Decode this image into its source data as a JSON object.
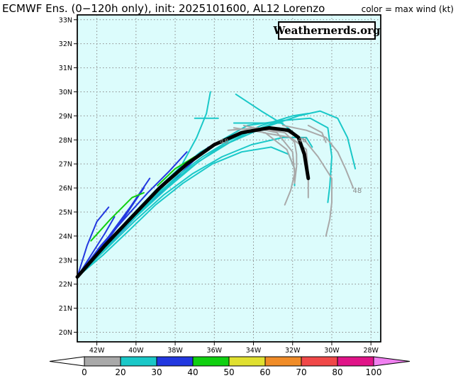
{
  "header": {
    "title": "ECMWF Ens. (0−120h only), init: 2025101600, AL12 Lorenzo",
    "color_label": "color = max wind (kt)"
  },
  "watermark": "Weathernerds.org",
  "map": {
    "lon_range": [
      -43,
      -27.5
    ],
    "lat_range": [
      19.6,
      33.2
    ],
    "lat_ticks": [
      "20N",
      "21N",
      "22N",
      "23N",
      "24N",
      "25N",
      "26N",
      "27N",
      "28N",
      "29N",
      "30N",
      "31N",
      "32N",
      "33N"
    ],
    "lon_ticks": [
      "42W",
      "40W",
      "38W",
      "36W",
      "34W",
      "32W",
      "30W",
      "28W"
    ],
    "grid": true,
    "background_color": "#dcfcfc"
  },
  "colorbar": {
    "ticks": [
      "0",
      "20",
      "30",
      "40",
      "50",
      "60",
      "70",
      "80",
      "100"
    ],
    "colors": [
      "#ffffff",
      "#a9a9a9",
      "#1ac8c8",
      "#2238e0",
      "#10d010",
      "#e0e030",
      "#f08c28",
      "#f04848",
      "#e01488",
      "#f080f0"
    ]
  },
  "annotations": [
    {
      "text": "48",
      "lon": -31.5,
      "lat": 27.9
    },
    {
      "text": "48",
      "lon": -28.7,
      "lat": 25.8
    },
    {
      "text": "48",
      "lon": -35.5,
      "lat": 27.85
    }
  ],
  "tracks": [
    {
      "color": "#2238e0",
      "points": [
        [
          -43,
          22.3
        ],
        [
          -42.3,
          23.2
        ],
        [
          -41.6,
          24.1
        ],
        [
          -41.1,
          24.8
        ]
      ]
    },
    {
      "color": "#2238e0",
      "points": [
        [
          -43,
          22.3
        ],
        [
          -42.5,
          23.6
        ],
        [
          -42,
          24.6
        ],
        [
          -41.4,
          25.2
        ]
      ]
    },
    {
      "color": "#2238e0",
      "points": [
        [
          -43,
          22.3
        ],
        [
          -42.2,
          23
        ],
        [
          -41.3,
          24
        ],
        [
          -40.5,
          24.9
        ],
        [
          -39.6,
          26
        ]
      ]
    },
    {
      "color": "#2238e0",
      "points": [
        [
          -43,
          22.3
        ],
        [
          -42.1,
          23.2
        ],
        [
          -41.2,
          24.2
        ],
        [
          -40.3,
          25.2
        ],
        [
          -39.3,
          26.4
        ]
      ]
    },
    {
      "color": "#2238e0",
      "points": [
        [
          -43,
          22.3
        ],
        [
          -41.8,
          23.6
        ],
        [
          -40.5,
          24.8
        ],
        [
          -39.4,
          25.8
        ],
        [
          -38.3,
          26.7
        ],
        [
          -37.4,
          27.5
        ]
      ]
    },
    {
      "color": "#2238e0",
      "points": [
        [
          -43,
          22.3
        ],
        [
          -41.8,
          23.3
        ],
        [
          -40.6,
          24.3
        ],
        [
          -39.3,
          25.4
        ],
        [
          -38.1,
          26.3
        ],
        [
          -37.1,
          27.1
        ],
        [
          -36.3,
          27.7
        ]
      ]
    },
    {
      "color": "#1ac8c8",
      "points": [
        [
          -43,
          22.3
        ],
        [
          -41.7,
          23.5
        ],
        [
          -40.4,
          24.7
        ],
        [
          -39,
          25.9
        ],
        [
          -37.7,
          26.9
        ],
        [
          -36.9,
          28.1
        ],
        [
          -36.4,
          29.1
        ],
        [
          -36.2,
          30
        ]
      ]
    },
    {
      "color": "#1ac8c8",
      "points": [
        [
          -43,
          22.3
        ],
        [
          -41.7,
          23.4
        ],
        [
          -40.3,
          24.6
        ],
        [
          -39.1,
          25.6
        ],
        [
          -37.9,
          26.7
        ],
        [
          -36.7,
          27.5
        ],
        [
          -35.6,
          28
        ],
        [
          -34.3,
          28.6
        ],
        [
          -32.5,
          28.8
        ]
      ]
    },
    {
      "color": "#1ac8c8",
      "points": [
        [
          -43,
          22.3
        ],
        [
          -41.8,
          23.3
        ],
        [
          -40.5,
          24.4
        ],
        [
          -39.2,
          25.5
        ],
        [
          -37.9,
          26.5
        ],
        [
          -36.6,
          27.3
        ],
        [
          -35.2,
          28
        ],
        [
          -33.6,
          28.6
        ],
        [
          -32,
          29
        ],
        [
          -31.2,
          29.1
        ]
      ]
    },
    {
      "color": "#1ac8c8",
      "points": [
        [
          -43,
          22.3
        ],
        [
          -41.6,
          23.5
        ],
        [
          -40.2,
          24.7
        ],
        [
          -38.8,
          25.8
        ],
        [
          -37.3,
          26.8
        ],
        [
          -35.9,
          27.6
        ],
        [
          -34.3,
          28.3
        ],
        [
          -32.6,
          28.8
        ],
        [
          -31.1,
          28.9
        ],
        [
          -30.2,
          28.5
        ],
        [
          -30,
          27.3
        ],
        [
          -30.1,
          26.1
        ],
        [
          -30.2,
          25.4
        ]
      ]
    },
    {
      "color": "#1ac8c8",
      "points": [
        [
          -43,
          22.3
        ],
        [
          -41.6,
          23.4
        ],
        [
          -40.1,
          24.6
        ],
        [
          -38.6,
          25.7
        ],
        [
          -37.1,
          26.6
        ],
        [
          -35.6,
          27.3
        ],
        [
          -34.1,
          27.8
        ],
        [
          -32.5,
          28.1
        ],
        [
          -31.3,
          28.1
        ],
        [
          -31,
          27.7
        ]
      ]
    },
    {
      "color": "#1ac8c8",
      "points": [
        [
          -43,
          22.3
        ],
        [
          -41.7,
          23.2
        ],
        [
          -40.4,
          24.2
        ],
        [
          -39,
          25.3
        ],
        [
          -37.6,
          26.2
        ],
        [
          -36.1,
          27
        ],
        [
          -34.6,
          27.5
        ],
        [
          -33.1,
          27.7
        ],
        [
          -32.2,
          27.4
        ],
        [
          -31.9,
          26.8
        ],
        [
          -31.9,
          26.1
        ]
      ]
    },
    {
      "color": "#1ac8c8",
      "points": [
        [
          -43,
          22.3
        ],
        [
          -41.5,
          23.6
        ],
        [
          -40,
          24.8
        ],
        [
          -38.4,
          26
        ],
        [
          -36.8,
          27.1
        ],
        [
          -35.2,
          27.9
        ],
        [
          -33.5,
          28.5
        ],
        [
          -31.7,
          29
        ],
        [
          -30.6,
          29.2
        ],
        [
          -29.7,
          28.9
        ],
        [
          -29.2,
          28.1
        ],
        [
          -28.8,
          26.8
        ]
      ]
    },
    {
      "color": "#1ac8c8",
      "points": [
        [
          -34.9,
          29.9
        ],
        [
          -33.6,
          29.2
        ],
        [
          -32.4,
          28.6
        ],
        [
          -31.8,
          28.2
        ]
      ]
    },
    {
      "color": "#1ac8c8",
      "points": [
        [
          -37,
          28.9
        ],
        [
          -35.8,
          28.9
        ]
      ]
    },
    {
      "color": "#1ac8c8",
      "points": [
        [
          -35,
          28.7
        ],
        [
          -32.5,
          28.7
        ]
      ]
    },
    {
      "color": "#10d010",
      "points": [
        [
          -42.3,
          23.8
        ],
        [
          -41.3,
          24.7
        ],
        [
          -40.2,
          25.6
        ],
        [
          -39.6,
          25.8
        ]
      ]
    },
    {
      "color": "#10d010",
      "points": [
        [
          -38.9,
          26.1
        ],
        [
          -38,
          26.8
        ],
        [
          -37,
          27.3
        ]
      ]
    },
    {
      "color": "#a9a9a9",
      "points": [
        [
          -35.3,
          28.4
        ],
        [
          -33.8,
          28.5
        ],
        [
          -32.4,
          28.3
        ],
        [
          -31.9,
          27.9
        ],
        [
          -31.8,
          27.4
        ],
        [
          -31.8,
          26.9
        ],
        [
          -31.9,
          26.2
        ]
      ]
    },
    {
      "color": "#a9a9a9",
      "points": [
        [
          -35,
          28.5
        ],
        [
          -33.4,
          28.3
        ],
        [
          -32.3,
          27.6
        ],
        [
          -31.9,
          26.8
        ],
        [
          -31.9,
          26.2
        ]
      ]
    },
    {
      "color": "#a9a9a9",
      "points": [
        [
          -34.5,
          28.6
        ],
        [
          -32.8,
          28.3
        ],
        [
          -32,
          27.5
        ],
        [
          -31.9,
          26.6
        ],
        [
          -32.1,
          25.9
        ],
        [
          -32.4,
          25.3
        ]
      ]
    },
    {
      "color": "#a9a9a9",
      "points": [
        [
          -33.5,
          28.3
        ],
        [
          -32.1,
          28.1
        ],
        [
          -31.3,
          27.6
        ],
        [
          -31.2,
          26.6
        ],
        [
          -31.2,
          25.6
        ]
      ]
    },
    {
      "color": "#a9a9a9",
      "points": [
        [
          -32.7,
          28.5
        ],
        [
          -31.4,
          28
        ],
        [
          -30.7,
          27.3
        ],
        [
          -30,
          26.4
        ],
        [
          -30,
          25.4
        ],
        [
          -30.1,
          24.7
        ],
        [
          -30.3,
          24
        ]
      ]
    },
    {
      "color": "#a9a9a9",
      "points": [
        [
          -32.5,
          28.6
        ],
        [
          -31.3,
          28.4
        ],
        [
          -30.3,
          28.1
        ],
        [
          -29.7,
          27.5
        ],
        [
          -29.3,
          26.8
        ],
        [
          -28.9,
          26
        ]
      ]
    },
    {
      "color": "#a9a9a9",
      "points": [
        [
          -31.2,
          28.6
        ],
        [
          -30.5,
          28.3
        ],
        [
          -30.3,
          27.9
        ]
      ]
    },
    {
      "color": "#000000",
      "width": 5,
      "points": [
        [
          -43,
          22.3
        ],
        [
          -41.6,
          23.6
        ],
        [
          -40.2,
          24.8
        ],
        [
          -38.8,
          26
        ],
        [
          -37.4,
          27
        ],
        [
          -36,
          27.8
        ],
        [
          -34.6,
          28.3
        ],
        [
          -33.2,
          28.5
        ],
        [
          -32.2,
          28.4
        ],
        [
          -31.7,
          28.1
        ],
        [
          -31.4,
          27.4
        ],
        [
          -31.2,
          26.4
        ]
      ]
    }
  ]
}
